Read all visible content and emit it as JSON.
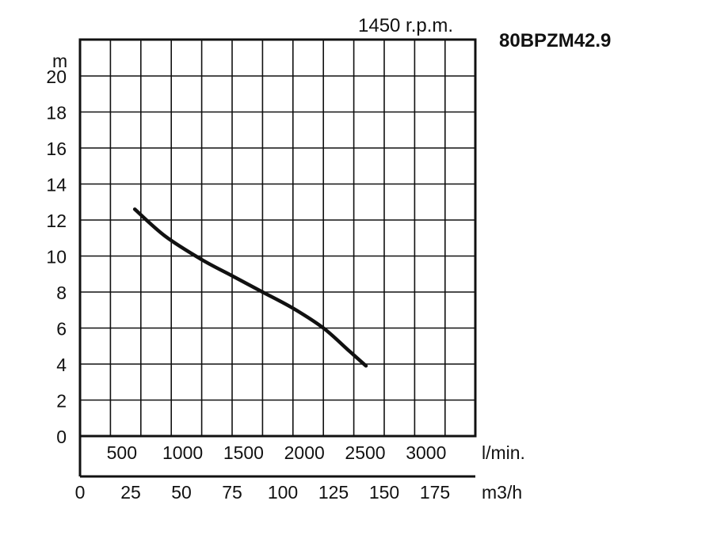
{
  "chart_data": {
    "type": "line",
    "title": "80BPZM42.9",
    "speed_label": "1450 r.p.m.",
    "ylabel": "m",
    "ylim": [
      0,
      21
    ],
    "y_ticks": [
      "0",
      "2",
      "4",
      "6",
      "8",
      "10",
      "12",
      "14",
      "16",
      "18",
      "20"
    ],
    "x_lmin_label": "l/min.",
    "x_lmin_ticks": [
      "500",
      "1000",
      "1500",
      "2000",
      "2500",
      "3000"
    ],
    "x_m3h_label": "m3/h",
    "x_m3h_ticks": [
      "0",
      "25",
      "50",
      "75",
      "100",
      "125",
      "150",
      "175"
    ],
    "xlim_lmin": [
      0,
      3250
    ],
    "grid": true,
    "colors": {
      "line": "#111111",
      "grid": "#111111",
      "background": "#ffffff"
    },
    "series": [
      {
        "x_lmin": [
          450,
          700,
          1000,
          1250,
          1500,
          1750,
          2000,
          2200,
          2350
        ],
        "y_m": [
          12.6,
          11.1,
          9.8,
          8.9,
          8.0,
          7.1,
          6.0,
          4.8,
          3.9
        ]
      }
    ]
  }
}
